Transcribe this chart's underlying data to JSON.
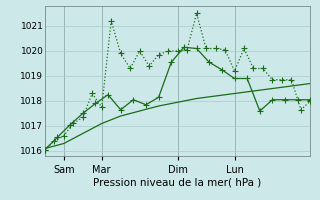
{
  "xlabel": "Pression niveau de la mer( hPa )",
  "bg_color": "#cce8e8",
  "grid_color": "#aacccc",
  "line_color": "#1a6b1a",
  "xlim": [
    0,
    84
  ],
  "ylim": [
    1015.8,
    1021.8
  ],
  "yticks": [
    1016,
    1017,
    1018,
    1019,
    1020,
    1021
  ],
  "xtick_positions": [
    6,
    18,
    42,
    60
  ],
  "xtick_labels": [
    "Sam",
    "Mar",
    "Dim",
    "Lun"
  ],
  "vlines": [
    6,
    18,
    42,
    60
  ],
  "trend_x": [
    0,
    6,
    12,
    18,
    24,
    30,
    36,
    42,
    48,
    54,
    60,
    66,
    72,
    78,
    84
  ],
  "trend_y": [
    1016.1,
    1016.3,
    1016.7,
    1017.1,
    1017.4,
    1017.6,
    1017.8,
    1017.95,
    1018.1,
    1018.2,
    1018.3,
    1018.4,
    1018.5,
    1018.6,
    1018.7
  ],
  "line1_x": [
    0,
    3,
    6,
    9,
    12,
    15,
    18,
    21,
    24,
    27,
    30,
    33,
    36,
    39,
    42,
    45,
    48,
    51,
    54,
    57,
    60,
    63,
    66,
    69,
    72,
    75,
    78,
    81,
    84
  ],
  "line1_y": [
    1016.05,
    1016.4,
    1016.6,
    1017.1,
    1017.35,
    1018.3,
    1017.75,
    1021.2,
    1019.9,
    1019.3,
    1020.0,
    1019.4,
    1019.85,
    1020.0,
    1020.0,
    1020.05,
    1021.5,
    1020.1,
    1020.1,
    1020.05,
    1019.2,
    1020.1,
    1019.3,
    1019.3,
    1018.85,
    1018.85,
    1018.85,
    1017.65,
    1018.0
  ],
  "line2_x": [
    0,
    4,
    8,
    12,
    16,
    20,
    24,
    28,
    32,
    36,
    40,
    44,
    48,
    52,
    56,
    60,
    64,
    68,
    72,
    76,
    80,
    84
  ],
  "line2_y": [
    1016.05,
    1016.55,
    1017.05,
    1017.5,
    1017.9,
    1018.25,
    1017.65,
    1018.05,
    1017.85,
    1018.15,
    1019.55,
    1020.15,
    1020.1,
    1019.55,
    1019.25,
    1018.9,
    1018.9,
    1017.6,
    1018.05,
    1018.05,
    1018.05,
    1018.05
  ]
}
